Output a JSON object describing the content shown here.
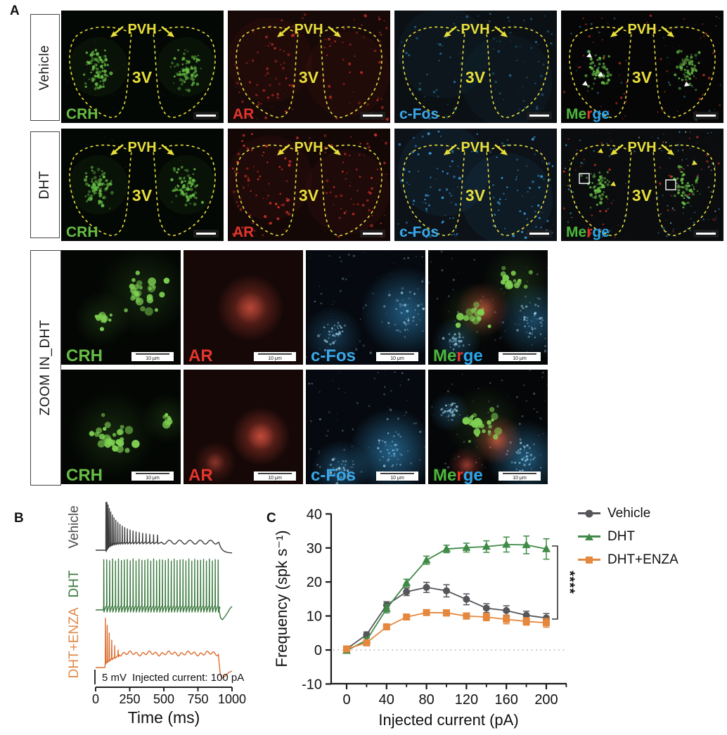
{
  "panel_a": {
    "letter": "A",
    "row_labels": [
      "Vehicle",
      "DHT"
    ],
    "channels": [
      "CRH",
      "AR",
      "c-Fos",
      "Merge"
    ],
    "region_label": "PVH",
    "ventricle_label": "3V",
    "merge_segments": [
      {
        "text": "Me",
        "color": "#4cb83b"
      },
      {
        "text": "r",
        "color": "#e5352c"
      },
      {
        "text": "ge",
        "color": "#2ba6ea"
      }
    ],
    "channel_colors": {
      "CRH": "#66bd44",
      "AR": "#e5352c",
      "c-Fos": "#3aa7e8"
    },
    "outline_color": "#e8df3a"
  },
  "zoom_section": {
    "row_label": "ZOOM IN_DHT",
    "channels": [
      "CRH",
      "AR",
      "c-Fos",
      "Merge"
    ],
    "scale_bar": "10 μm"
  },
  "panel_b": {
    "letter": "B",
    "traces": [
      {
        "label": "Vehicle",
        "color": "#3c3c3c",
        "label_color": "#4c4c4c"
      },
      {
        "label": "DHT",
        "color": "#3a7a3e",
        "label_color": "#3a7a3e"
      },
      {
        "label": "DHT+ENZA",
        "color": "#dc6e2d",
        "label_color": "#e08a4a"
      }
    ],
    "scale_text": "5 mV",
    "stim_text": "Injected current: 100 pA",
    "x_ticks": [
      "0",
      "250",
      "500",
      "750",
      "1000"
    ],
    "x_label": "Time (ms)"
  },
  "panel_c": {
    "letter": "C",
    "significance": "****"
  },
  "chart_data": {
    "type": "line",
    "x": [
      0,
      20,
      40,
      60,
      80,
      100,
      120,
      140,
      160,
      180,
      200
    ],
    "series": [
      {
        "name": "Vehicle",
        "marker": "circle",
        "color": "#55555a",
        "values": [
          0.3,
          4.5,
          13.2,
          17.1,
          18.4,
          17.4,
          14.9,
          12.3,
          11.6,
          10.2,
          9.4
        ],
        "errors": [
          0.3,
          0.8,
          1.0,
          1.1,
          1.5,
          1.8,
          1.6,
          1.3,
          1.4,
          1.2,
          1.3
        ]
      },
      {
        "name": "DHT",
        "marker": "triangle",
        "color": "#3f8a46",
        "values": [
          -0.2,
          2.9,
          12.1,
          19.7,
          26.4,
          29.7,
          30.1,
          30.4,
          31.0,
          30.9,
          29.7
        ],
        "errors": [
          0.3,
          0.6,
          1.2,
          1.1,
          1.2,
          1.1,
          1.3,
          1.7,
          2.2,
          2.6,
          3.0
        ]
      },
      {
        "name": "DHT+ENZA",
        "marker": "square",
        "color": "#e5873c",
        "values": [
          0.3,
          2.1,
          6.8,
          9.7,
          11.0,
          10.9,
          10.0,
          9.7,
          9.0,
          8.4,
          8.0
        ],
        "errors": [
          0.2,
          0.4,
          0.6,
          0.7,
          0.8,
          0.9,
          0.9,
          1.1,
          1.3,
          1.1,
          1.3
        ]
      }
    ],
    "xlabel": "Injected current (pA)",
    "ylabel": "Frequency (spk s⁻¹)",
    "xlim": [
      -20,
      220
    ],
    "ylim": [
      -10,
      40
    ],
    "x_major_ticks": [
      0,
      40,
      80,
      120,
      160,
      200
    ],
    "x_minor_ticks": [
      20,
      60,
      100,
      140,
      180,
      220
    ],
    "y_major_ticks": [
      -10,
      0,
      10,
      20,
      30,
      40
    ],
    "zero_line": true,
    "significance": "****",
    "legend_position": "right"
  }
}
